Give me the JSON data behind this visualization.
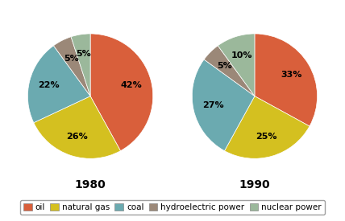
{
  "title_1980": "1980",
  "title_1990": "1990",
  "labels": [
    "oil",
    "natural gas",
    "coal",
    "hydroelectric power",
    "nuclear power"
  ],
  "colors": [
    "#D95F3B",
    "#D4C B00",
    "#6BAAB0",
    "#9B8878",
    "#9BB89B"
  ],
  "colors_fixed": [
    "#D95F3B",
    "#D4C020",
    "#6BAAB0",
    "#9B8878",
    "#9BB89B"
  ],
  "values_1980": [
    42,
    26,
    22,
    5,
    5
  ],
  "values_1990": [
    33,
    25,
    27,
    5,
    10
  ],
  "background_color": "#FFFFFF",
  "title_fontsize": 10,
  "pct_fontsize": 8,
  "legend_fontsize": 7.5,
  "startangle_1980": 90,
  "startangle_1990": 90
}
